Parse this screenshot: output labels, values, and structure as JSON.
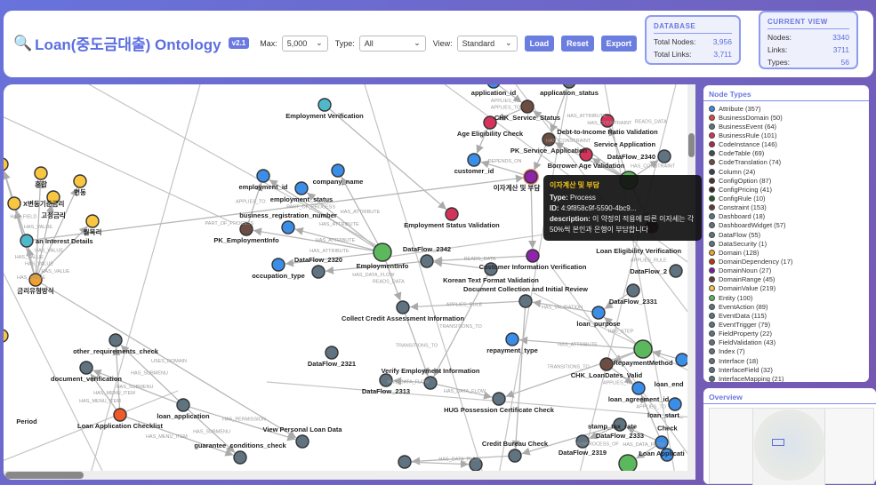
{
  "header": {
    "icon": "magnifier-icon",
    "title": "Loan(중도금대출) Ontology",
    "version": "v2.1",
    "max_label": "Max:",
    "max_value": "5,000",
    "type_label": "Type:",
    "type_value": "All",
    "view_label": "View:",
    "view_value": "Standard",
    "load": "Load",
    "reset": "Reset",
    "export": "Export"
  },
  "database": {
    "title": "DATABASE",
    "nodes_label": "Total Nodes:",
    "nodes": "3,956",
    "links_label": "Total Links:",
    "links": "3,711"
  },
  "current_view": {
    "title": "CURRENT VIEW",
    "nodes_label": "Nodes:",
    "nodes": "3340",
    "links_label": "Links:",
    "links": "3711",
    "types_label": "Types:",
    "types": "56"
  },
  "colors": {
    "accent": "#5b6ee1",
    "attr": "#3b8ee8",
    "rule": "#d6335a",
    "brown": "#6d4c41",
    "slate": "#5f7380",
    "entity": "#5cb85c",
    "value": "#f9c642",
    "domain": "#f0a030",
    "teal": "#4fb8c9",
    "purple": "#8e24aa",
    "orange": "#f05a28",
    "darkred": "#5a1a1a"
  },
  "graph": {
    "nodes": [
      {
        "label": "Employment Verification",
        "c": "teal"
      },
      {
        "label": "application_id",
        "c": "attr"
      },
      {
        "label": "application_status",
        "c": "slate"
      },
      {
        "label": "CHK_Service_Status",
        "c": "brown"
      },
      {
        "label": "Age Eligibility Check",
        "c": "rule"
      },
      {
        "label": "Debt-to-Income Ratio Validation",
        "c": "rule"
      },
      {
        "label": "PK_Service_Application",
        "c": "brown"
      },
      {
        "label": "Borrower Age Validation",
        "c": "rule"
      },
      {
        "label": "customer_id",
        "c": "attr"
      },
      {
        "label": "이자계산 및 부담",
        "c": "purple"
      },
      {
        "label": "DataFlow_2340",
        "c": "slate"
      },
      {
        "label": "Service Application",
        "c": "entity"
      },
      {
        "label": "Loan Eligibility Verification",
        "c": "darkred"
      },
      {
        "label": "employment_id",
        "c": "attr"
      },
      {
        "label": "company_name",
        "c": "attr"
      },
      {
        "label": "employment_status",
        "c": "attr"
      },
      {
        "label": "PK_EmploymentInfo",
        "c": "brown"
      },
      {
        "label": "business_registration_number",
        "c": "attr"
      },
      {
        "label": "Employment Status Validation",
        "c": "rule"
      },
      {
        "label": "EmploymentInfo",
        "c": "entity"
      },
      {
        "label": "occupation_type",
        "c": "attr"
      },
      {
        "label": "DataFlow_2320",
        "c": "slate"
      },
      {
        "label": "DataFlow_2342",
        "c": "slate"
      },
      {
        "label": "Customer Information Verification",
        "c": "purple"
      },
      {
        "label": "Korean Text Format Validation",
        "c": "slate"
      },
      {
        "label": "DataFlow_2331",
        "c": "slate"
      },
      {
        "label": "DataFlow_2",
        "c": "slate"
      },
      {
        "label": "Collect Credit Assessment Information",
        "c": "slate"
      },
      {
        "label": "Document Collection and Initial Review",
        "c": "slate"
      },
      {
        "label": "loan_purpose",
        "c": "attr"
      },
      {
        "label": "repayment_type",
        "c": "attr"
      },
      {
        "label": "RepaymentMethod",
        "c": "entity"
      },
      {
        "label": "loan_end",
        "c": "attr"
      },
      {
        "label": "CHK_LoanDates_Valid",
        "c": "brown"
      },
      {
        "label": "loan_agreement_id",
        "c": "attr"
      },
      {
        "label": "loan_start_",
        "c": "attr"
      },
      {
        "label": "DataFlow_2321",
        "c": "slate"
      },
      {
        "label": "DataFlow_2313",
        "c": "slate"
      },
      {
        "label": "Verify Employment Information",
        "c": "slate"
      },
      {
        "label": "HUG Possession Certificate Check",
        "c": "slate"
      },
      {
        "label": "DataFlow_2333",
        "c": "slate"
      },
      {
        "label": "DataFlow_2319",
        "c": "slate"
      },
      {
        "label": "Loan Applicati",
        "c": "attr"
      },
      {
        "label": "stamp_tax_rate",
        "c": "attr"
      },
      {
        "label": "",
        "c": "entity"
      },
      {
        "label": "Credit Bureau Check",
        "c": "slate"
      },
      {
        "label": "",
        "c": "slate"
      },
      {
        "label": "",
        "c": "slate"
      },
      {
        "label": "other_requirements_check",
        "c": "slate"
      },
      {
        "label": "document_verification",
        "c": "slate"
      },
      {
        "label": "Loan Application Checklist",
        "c": "orange"
      },
      {
        "label": "loan_application",
        "c": "slate"
      },
      {
        "label": "guarantee_conditions_check",
        "c": "slate"
      },
      {
        "label": "View Personal Loan Data",
        "c": "slate"
      },
      {
        "label": "혼합",
        "c": "value"
      },
      {
        "label": "변동",
        "c": "value"
      },
      {
        "label": "X변동기준금리",
        "c": "value"
      },
      {
        "label": "고정금리",
        "c": "value"
      },
      {
        "label": "월복리",
        "c": "value"
      },
      {
        "label": "an Interest Details",
        "c": "teal"
      },
      {
        "label": "금리유형방식",
        "c": "domain"
      },
      {
        "label": "",
        "c": "value"
      },
      {
        "label": "",
        "c": "value"
      },
      {
        "label": "Period",
        "c": "none"
      },
      {
        "label": "Check",
        "c": "none"
      }
    ],
    "edges": [
      {
        "s": 3,
        "t": 4,
        "label": "APPLIES_TO"
      },
      {
        "s": 4,
        "t": 8,
        "label": ""
      },
      {
        "s": 9,
        "t": 8,
        "label": "DEPENDS_ON"
      },
      {
        "s": 11,
        "t": 5,
        "label": "HAS_CONSTRAINT"
      },
      {
        "s": 11,
        "t": 7,
        "label": "HAS_CONSTRAINT"
      },
      {
        "s": 11,
        "t": 6,
        "label": "HAS_CONSTRAINT"
      },
      {
        "s": 11,
        "t": 3,
        "label": "HAS_ATTRIBUTE"
      },
      {
        "s": 11,
        "t": 10,
        "label": "READS_DATA"
      },
      {
        "s": 11,
        "t": 12,
        "label": "APPLIES_RULE"
      },
      {
        "s": 6,
        "t": 9,
        "label": ""
      },
      {
        "s": 1,
        "t": 3,
        "label": "APPLIES_TO"
      },
      {
        "s": 2,
        "t": 6,
        "label": ""
      },
      {
        "s": 16,
        "t": 13,
        "label": "APPLIES_TO"
      },
      {
        "s": 19,
        "t": 15,
        "label": "HAS_ATTRIBUTE"
      },
      {
        "s": 19,
        "t": 14,
        "label": "HAS_ATTRIBUTE"
      },
      {
        "s": 19,
        "t": 17,
        "label": "HAS_ATTRIBUTE"
      },
      {
        "s": 19,
        "t": 16,
        "label": ""
      },
      {
        "s": 19,
        "t": 13,
        "label": "PART_OF_PROCESS"
      },
      {
        "s": 19,
        "t": 20,
        "label": "HAS_ATTRIBUTE"
      },
      {
        "s": 22,
        "t": 21,
        "label": "HAS_DATA_FLOW"
      },
      {
        "s": 19,
        "t": 27,
        "label": "READS_DATA"
      },
      {
        "s": 59,
        "t": 9,
        "label": "PART_OF_PROCESS"
      },
      {
        "s": 0,
        "t": 18,
        "label": ""
      },
      {
        "s": 9,
        "t": 23,
        "label": ""
      },
      {
        "s": 23,
        "t": 22,
        "label": "READS_DATA"
      },
      {
        "s": 24,
        "t": 22,
        "label": ""
      },
      {
        "s": 28,
        "t": 27,
        "label": "APPLIES_RULE"
      },
      {
        "s": 29,
        "t": 28,
        "label": "HAS_VALIDATION"
      },
      {
        "s": 31,
        "t": 30,
        "label": "HAS_ATTRIBUTE"
      },
      {
        "s": 31,
        "t": 29,
        "label": "HAS_STEP"
      },
      {
        "s": 25,
        "t": 29,
        "label": ""
      },
      {
        "s": 31,
        "t": 33,
        "label": ""
      },
      {
        "s": 32,
        "t": 31,
        "label": ""
      },
      {
        "s": 33,
        "t": 34,
        "label": "APPLIES_TO"
      },
      {
        "s": 38,
        "t": 37,
        "label": "HAS_DATA_FLOW"
      },
      {
        "s": 27,
        "t": 38,
        "label": "TRANSITIONS_TO"
      },
      {
        "s": 28,
        "t": 45,
        "label": ""
      },
      {
        "s": 40,
        "t": 45,
        "label": ""
      },
      {
        "s": 31,
        "t": 39,
        "label": "TRANSITIONS_TO"
      },
      {
        "s": 40,
        "t": 41,
        "label": "SUBPROCESS_OF"
      },
      {
        "s": 38,
        "t": 39,
        "label": "HAS_DATA_FLOW"
      },
      {
        "s": 24,
        "t": 38,
        "label": "TRANSITIONS_TO"
      },
      {
        "s": 45,
        "t": 47,
        "label": "HAS_DATA_FLOW"
      },
      {
        "s": 47,
        "t": 46,
        "label": ""
      },
      {
        "s": 42,
        "t": 40,
        "label": ""
      },
      {
        "s": 43,
        "t": 34,
        "label": "APPLIES_TO"
      },
      {
        "s": 42,
        "t": 44,
        "label": "HAS_DATA_FLOW"
      },
      {
        "s": 51,
        "t": 48,
        "label": "HAS_SUBMENU"
      },
      {
        "s": 51,
        "t": 49,
        "label": "HAS_SUBMENU"
      },
      {
        "s": 50,
        "t": 48,
        "label": "HAS_MENU_ITEM"
      },
      {
        "s": 50,
        "t": 49,
        "label": "HAS_MENU_ITEM"
      },
      {
        "s": 51,
        "t": 52,
        "label": "HAS_SUBMENU"
      },
      {
        "s": 50,
        "t": 52,
        "label": "HAS_MENU_ITEM"
      },
      {
        "s": 51,
        "t": 53,
        "label": "HAS_PERMISSION"
      },
      {
        "s": 60,
        "t": 53,
        "label": "USES_DOMAIN"
      },
      {
        "s": 60,
        "t": 54,
        "label": "HAS_VALUE"
      },
      {
        "s": 60,
        "t": 55,
        "label": "HAS_VALUE"
      },
      {
        "s": 60,
        "t": 56,
        "label": "HAS_VALUE"
      },
      {
        "s": 60,
        "t": 57,
        "label": "HAS_VALUE"
      },
      {
        "s": 60,
        "t": 58,
        "label": "HAS_VALUE"
      },
      {
        "s": 59,
        "t": 61,
        "label": "HAS_FIELD"
      },
      {
        "s": 60,
        "t": 59,
        "label": "HAS_VALUE"
      },
      {
        "s": 60,
        "t": 61,
        "label": ""
      }
    ]
  },
  "tooltip": {
    "title": "이자계산 및 부담",
    "type_label": "Type:",
    "type": "Process",
    "id_label": "ID:",
    "id": "4:9f858c9f-5590-4bc9...",
    "desc_label": "description:",
    "desc": "이 약정의 적용에 따른 이자세는 각 50%씩 본인과 은행이 부담합니다"
  },
  "legend": {
    "title": "Node Types",
    "items": [
      {
        "label": "Attribute (357)",
        "color": "#3b8ee8"
      },
      {
        "label": "BusinessDomain (50)",
        "color": "#e04a3f"
      },
      {
        "label": "BusinessEvent (64)",
        "color": "#5f7380"
      },
      {
        "label": "BusinessRule (101)",
        "color": "#d6335a"
      },
      {
        "label": "CodeInstance (146)",
        "color": "#b0284f"
      },
      {
        "label": "CodeTable (69)",
        "color": "#3f4f58"
      },
      {
        "label": "CodeTranslation (74)",
        "color": "#6d4c41"
      },
      {
        "label": "Column (24)",
        "color": "#37474f"
      },
      {
        "label": "ConfigOption (87)",
        "color": "#4e342e"
      },
      {
        "label": "ConfigPricing (41)",
        "color": "#3e2723"
      },
      {
        "label": "ConfigRule (10)",
        "color": "#1b5e20"
      },
      {
        "label": "Constraint (153)",
        "color": "#5d4037"
      },
      {
        "label": "Dashboard (18)",
        "color": "#5f7380"
      },
      {
        "label": "DashboardWidget (57)",
        "color": "#5f7380"
      },
      {
        "label": "DataFlow (55)",
        "color": "#5f7380"
      },
      {
        "label": "DataSecurity (1)",
        "color": "#5f7380"
      },
      {
        "label": "Domain (128)",
        "color": "#f0a030"
      },
      {
        "label": "DomainDependency (17)",
        "color": "#bf360c"
      },
      {
        "label": "DomainNoun (27)",
        "color": "#7b1fa2"
      },
      {
        "label": "DomainRange (45)",
        "color": "#5d4037"
      },
      {
        "label": "DomainValue (219)",
        "color": "#f9c642"
      },
      {
        "label": "Entity (100)",
        "color": "#5cb85c"
      },
      {
        "label": "EventAction (89)",
        "color": "#5f7380"
      },
      {
        "label": "EventData (115)",
        "color": "#5f7380"
      },
      {
        "label": "EventTrigger (79)",
        "color": "#5f7380"
      },
      {
        "label": "FieldProperty (22)",
        "color": "#5f7380"
      },
      {
        "label": "FieldValidation (43)",
        "color": "#5f7380"
      },
      {
        "label": "Index (7)",
        "color": "#5f7380"
      },
      {
        "label": "Interface (18)",
        "color": "#5f7380"
      },
      {
        "label": "InterfaceField (32)",
        "color": "#5f7380"
      },
      {
        "label": "InterfaceMapping (21)",
        "color": "#5f7380"
      }
    ]
  },
  "overview": {
    "title": "Overview"
  }
}
